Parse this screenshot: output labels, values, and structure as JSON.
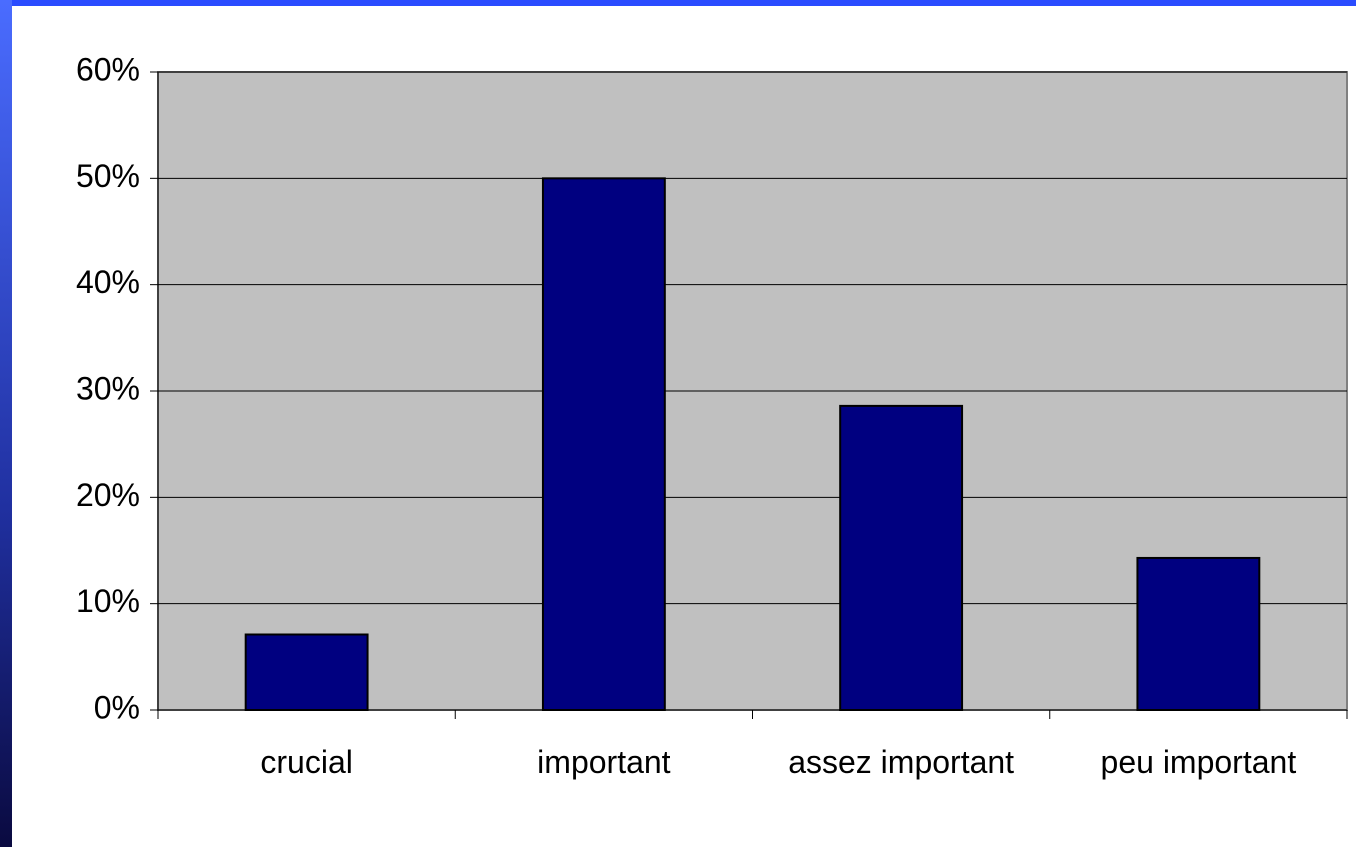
{
  "chart_data": {
    "type": "bar",
    "categories": [
      "crucial",
      "important",
      "assez important",
      "peu important"
    ],
    "values": [
      7.1,
      50,
      28.6,
      14.3
    ],
    "color": "#000080",
    "ylim": [
      0,
      60
    ],
    "yticks": [
      {
        "value": 0,
        "label": "0%"
      },
      {
        "value": 10,
        "label": "10%"
      },
      {
        "value": 20,
        "label": "20%"
      },
      {
        "value": 30,
        "label": "30%"
      },
      {
        "value": 40,
        "label": "40%"
      },
      {
        "value": 50,
        "label": "50%"
      },
      {
        "value": 60,
        "label": "60%"
      }
    ],
    "grid": true
  }
}
